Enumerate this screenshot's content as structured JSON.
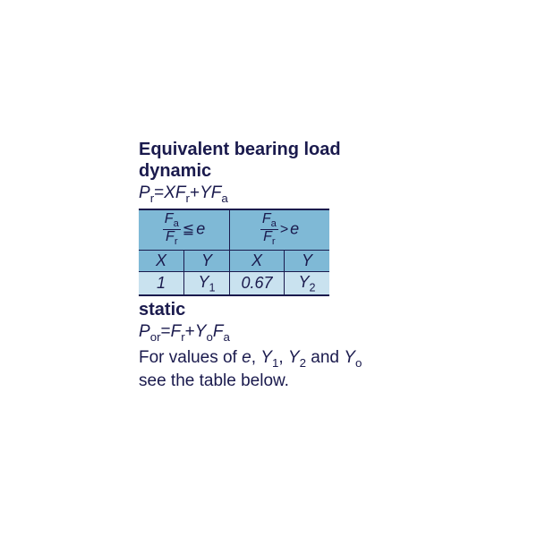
{
  "heading": {
    "line1": "Equivalent bearing load",
    "line2": "dynamic"
  },
  "dynamic_formula": {
    "lhs_var": "P",
    "lhs_sub": "r",
    "eq": "=",
    "t1_coef": "X",
    "t1_var": "F",
    "t1_sub": "r",
    "plus": "+",
    "t2_coef": "Y",
    "t2_var": "F",
    "t2_sub": "a"
  },
  "table": {
    "frac_num_var": "F",
    "frac_num_sub": "a",
    "frac_den_var": "F",
    "frac_den_sub": "r",
    "rel_le": "≦",
    "rel_gt": ">",
    "evar": "e",
    "colX": "X",
    "colY": "Y",
    "val_x1": "1",
    "val_y1_var": "Y",
    "val_y1_sub": "1",
    "val_x2": "0.67",
    "val_y2_var": "Y",
    "val_y2_sub": "2",
    "colors": {
      "header_bg": "#7fb9d6",
      "row_bg": "#c9e2ef",
      "border": "#1a1a4d",
      "text": "#1a1a4d"
    }
  },
  "static_heading": "static",
  "static_formula": {
    "lhs_var": "P",
    "lhs_sub": "or",
    "eq": "=",
    "t1_var": "F",
    "t1_sub": "r",
    "plus": "+",
    "t2_coef_var": "Y",
    "t2_coef_sub": "o",
    "t2_var": "F",
    "t2_sub": "a"
  },
  "note": {
    "p1": "For values of ",
    "v1": "e",
    "s1": ", ",
    "v2": "Y",
    "v2sub": "1",
    "s2": ", ",
    "v3": "Y",
    "v3sub": "2",
    "s3": " and ",
    "v4": "Y",
    "v4sub": "o",
    "p2": " see the table below."
  }
}
